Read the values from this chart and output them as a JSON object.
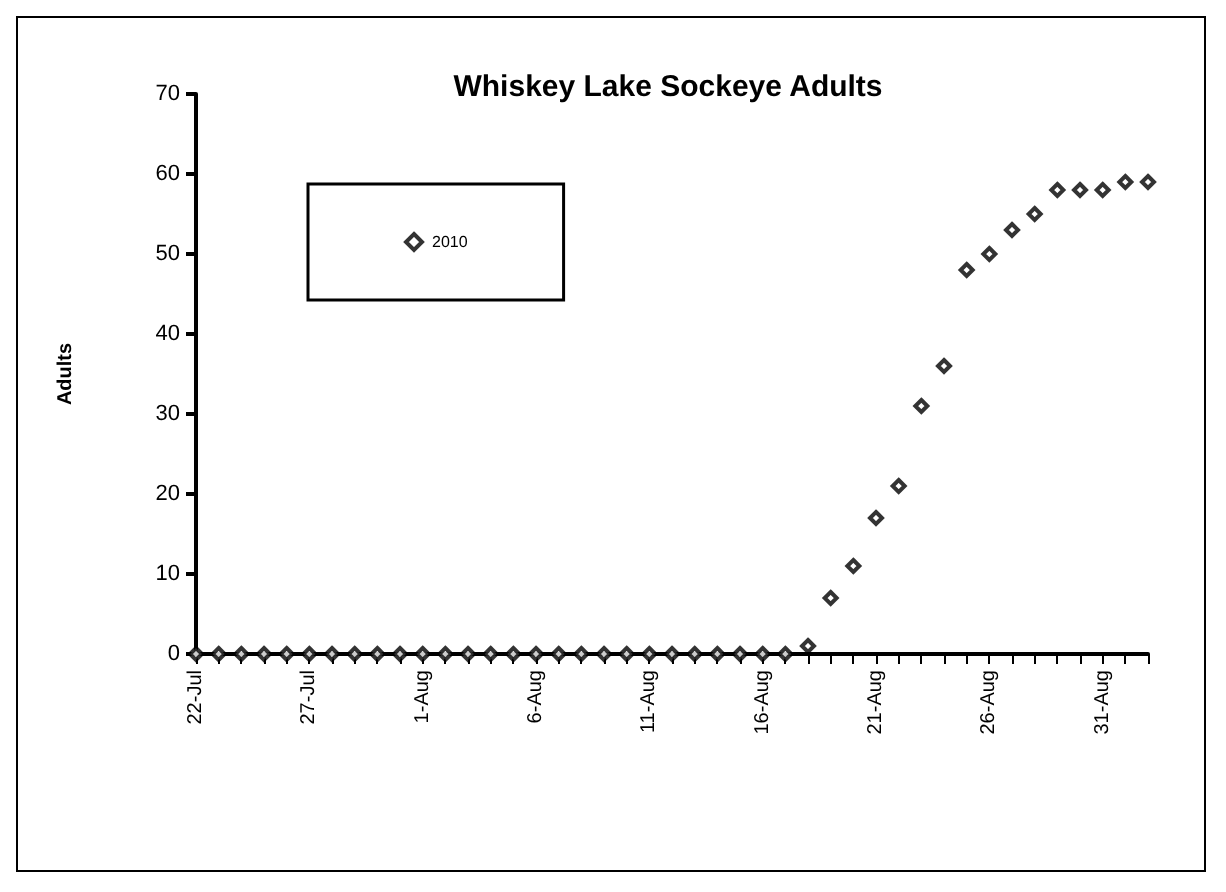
{
  "chart_data": {
    "type": "scatter",
    "title": "Whiskey Lake Sockeye Adults",
    "ylabel": "Adults",
    "categories": [
      "22-Jul",
      null,
      null,
      null,
      null,
      "27-Jul",
      null,
      null,
      null,
      null,
      "1-Aug",
      null,
      null,
      null,
      null,
      "6-Aug",
      null,
      null,
      null,
      null,
      "11-Aug",
      null,
      null,
      null,
      null,
      "16-Aug",
      null,
      null,
      null,
      null,
      "21-Aug",
      null,
      null,
      null,
      null,
      "26-Aug",
      null,
      null,
      null,
      null,
      "31-Aug",
      null,
      null
    ],
    "series": [
      {
        "name": "2010",
        "color": "#000000",
        "values": [
          0,
          0,
          0,
          0,
          0,
          0,
          0,
          0,
          0,
          0,
          0,
          0,
          0,
          0,
          0,
          0,
          0,
          0,
          0,
          0,
          0,
          0,
          0,
          0,
          0,
          0,
          0,
          1,
          7,
          11,
          17,
          21,
          31,
          36,
          48,
          50,
          53,
          55,
          58,
          58,
          58,
          59,
          59
        ]
      }
    ],
    "ylim": [
      0,
      70
    ],
    "yticks": [
      0,
      10,
      20,
      30,
      40,
      50,
      60,
      70
    ],
    "grid": false,
    "legend": "top left",
    "marker": "diamond"
  }
}
